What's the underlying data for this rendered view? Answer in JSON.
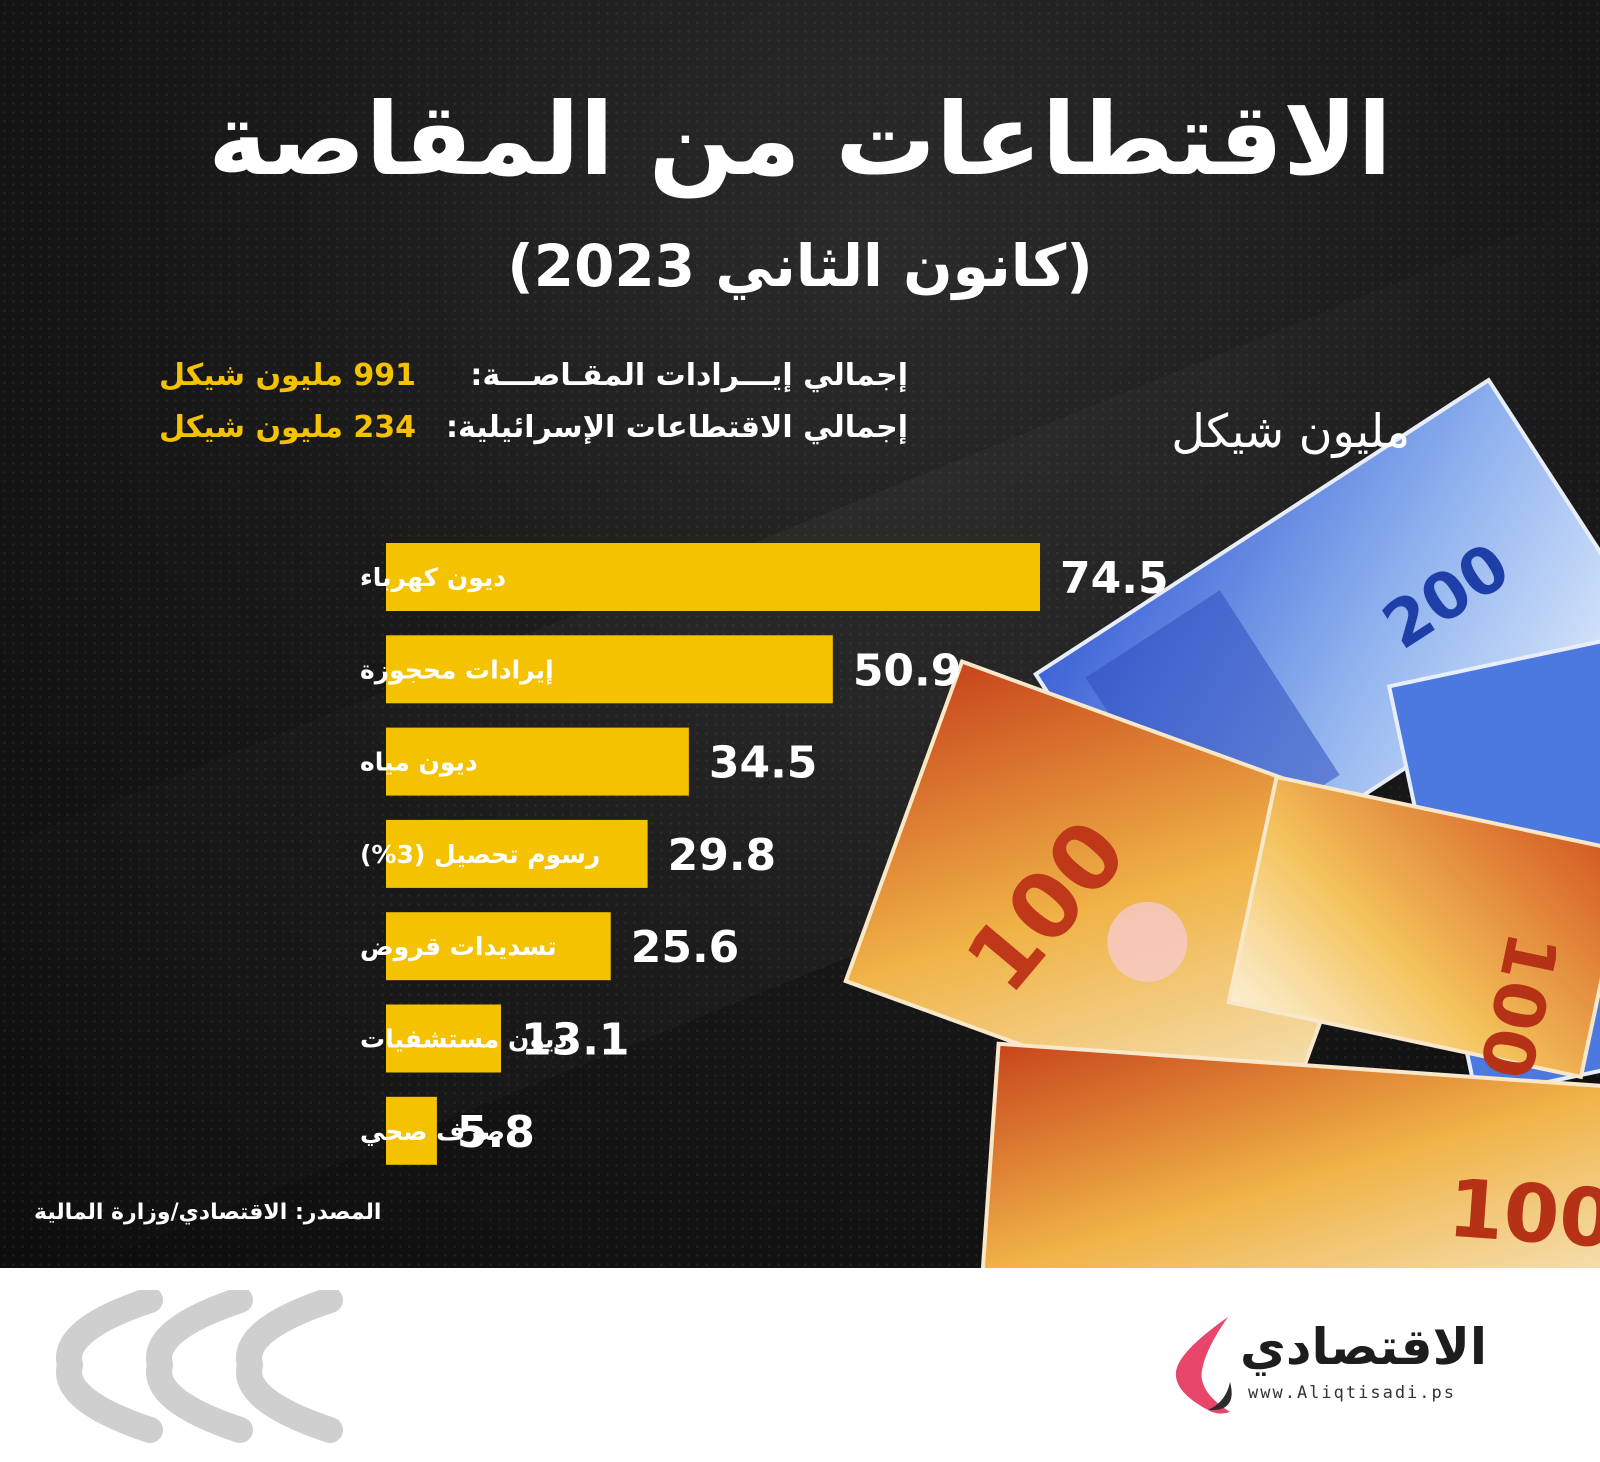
{
  "title": "الاقتطاعات من المقاصة",
  "subtitle": "(كانون الثاني 2023)",
  "stats": [
    {
      "label": "إجمالي إيـــرادات المقـاصـــة:",
      "value": "991 مليون شيكل"
    },
    {
      "label": "إجمالي الاقتطاعات الإسرائيلية:",
      "value": "234 مليون شيكل"
    }
  ],
  "unit_label": "مليون شيكل",
  "source": "المصدر: الاقتصادي/وزارة المالية",
  "logo": {
    "name": "الاقتصادي",
    "url": "www.Aliqtisadi.ps"
  },
  "colors": {
    "bar": "#f5c200",
    "background": "#141414",
    "accent": "#f5c200",
    "logo_accent": "#e8456b"
  },
  "chart_data": {
    "type": "bar",
    "orientation": "horizontal",
    "categories": [
      "ديون كهرباء",
      "إيرادات محجوزة",
      "ديون مياه",
      "رسوم تحصيل (3%)",
      "تسديدات قروض",
      "ديون مستشفيات",
      "صرف صحي"
    ],
    "values": [
      74.5,
      50.9,
      34.5,
      29.8,
      25.6,
      13.1,
      5.8
    ],
    "value_labels": [
      "74.5",
      "50.9",
      "34.5",
      "29.8",
      "25.6",
      "13.1",
      "5.8"
    ],
    "unit": "مليون شيكل",
    "xlim": [
      0,
      74.5
    ],
    "grid": false,
    "legend": "none"
  }
}
